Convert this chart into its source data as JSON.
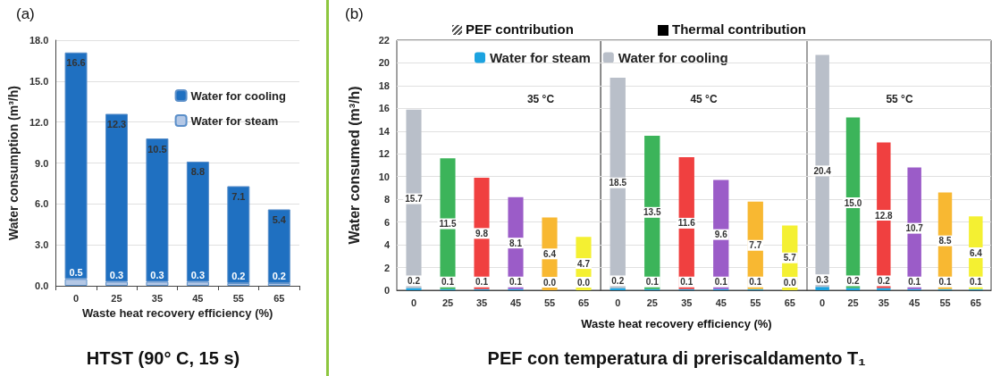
{
  "chart_data": [
    {
      "type": "bar",
      "title": "HTST (90° C, 15 s)",
      "xlabel": "Waste heat recovery efficiency (%)",
      "ylabel": "Water consumption (m³/h)",
      "annotations": [
        "(a)"
      ],
      "categories": [
        "0",
        "25",
        "35",
        "45",
        "55",
        "65"
      ],
      "stacked": true,
      "series": [
        {
          "name": "Water for steam",
          "color": "#b4c8e6",
          "values": [
            0.5,
            0.3,
            0.3,
            0.3,
            0.2,
            0.2
          ],
          "value_labels": [
            "0.5",
            "0.3",
            "0.3",
            "0.3",
            "0.2",
            "0.2"
          ]
        },
        {
          "name": "Water for cooling",
          "color": "#1f70c1",
          "values": [
            16.6,
            12.3,
            10.5,
            8.8,
            7.1,
            5.4
          ],
          "value_labels": [
            "16.6",
            "12.3",
            "10.5",
            "8.8",
            "7.1",
            "5.4"
          ]
        }
      ],
      "ylim": [
        0,
        18
      ],
      "yticks": [
        {
          "value": 0,
          "label": "0.0"
        },
        {
          "value": 3,
          "label": "3.0"
        },
        {
          "value": 6,
          "label": "6.0"
        },
        {
          "value": 9,
          "label": "9.0"
        },
        {
          "value": 12,
          "label": "12.0"
        },
        {
          "value": 15,
          "label": "15.0"
        },
        {
          "value": 18,
          "label": "18.0"
        }
      ],
      "grid": "y",
      "legend": "top right"
    },
    {
      "type": "bar",
      "title": "35 °C",
      "ylabel": "Water consumed (m³/h)",
      "annotations": [
        "(b)",
        "PEF contribution",
        "Thermal contribution",
        "PEF con temperatura di preriscaldamento T₁"
      ],
      "categories": [
        "0",
        "25",
        "35",
        "45",
        "55",
        "65"
      ],
      "stacked": true,
      "series": [
        {
          "name": "Water for steam",
          "color": "#1ca3e0",
          "values": [
            0.2,
            0.1,
            0.1,
            0.1,
            0.0,
            0.0
          ],
          "value_labels": [
            "0.2",
            "0.1",
            "0.1",
            "0.1",
            "0.0",
            "0.0"
          ]
        },
        {
          "name": "Water for cooling",
          "colors": [
            "#b9bfc9",
            "#3cb45a",
            "#f04040",
            "#9b5cc8",
            "#f8b832",
            "#f4f032"
          ],
          "values": [
            15.7,
            11.5,
            9.8,
            8.1,
            6.4,
            4.7
          ],
          "value_labels": [
            "15.7",
            "11.5",
            "9.8",
            "8.1",
            "6.4",
            "4.7"
          ]
        }
      ],
      "ylim": [
        0,
        22
      ],
      "yticks": [
        0,
        2,
        4,
        6,
        8,
        10,
        12,
        14,
        16,
        18,
        20,
        22
      ],
      "grid": "y",
      "legend": "top"
    },
    {
      "type": "bar",
      "title": "45 °C",
      "xlabel": "Waste heat recovery efficiency (%)",
      "categories": [
        "0",
        "25",
        "35",
        "45",
        "55",
        "65"
      ],
      "stacked": true,
      "series": [
        {
          "color": "#1ca3e0",
          "values": [
            0.2,
            0.1,
            0.1,
            0.1,
            0.1,
            0.0
          ],
          "value_labels": [
            "0.2",
            "0.1",
            "0.1",
            "0.1",
            "0.1",
            "0.0"
          ]
        },
        {
          "colors": [
            "#b9bfc9",
            "#3cb45a",
            "#f04040",
            "#9b5cc8",
            "#f8b832",
            "#f4f032"
          ],
          "values": [
            18.5,
            13.5,
            11.6,
            9.6,
            7.7,
            5.7
          ],
          "value_labels": [
            "18.5",
            "13.5",
            "11.6",
            "9.6",
            "7.7",
            "5.7"
          ]
        }
      ],
      "ylim": [
        0,
        22
      ],
      "yticks": [
        0,
        2,
        4,
        6,
        8,
        10,
        12,
        14,
        16,
        18,
        20,
        22
      ],
      "grid": "y",
      "tick_labels": "x"
    },
    {
      "type": "bar",
      "title": "55 °C",
      "categories": [
        "0",
        "25",
        "35",
        "45",
        "55",
        "65"
      ],
      "stacked": true,
      "series": [
        {
          "color": "#1ca3e0",
          "values": [
            0.3,
            0.2,
            0.2,
            0.1,
            0.1,
            0.1
          ],
          "value_labels": [
            "0.3",
            "0.2",
            "0.2",
            "0.1",
            "0.1",
            "0.1"
          ]
        },
        {
          "colors": [
            "#b9bfc9",
            "#3cb45a",
            "#f04040",
            "#9b5cc8",
            "#f8b832",
            "#f4f032"
          ],
          "values": [
            20.4,
            15.0,
            12.8,
            10.7,
            8.5,
            6.4
          ],
          "value_labels": [
            "20.4",
            "15.0",
            "12.8",
            "10.7",
            "8.5",
            "6.4"
          ]
        }
      ],
      "ylim": [
        0,
        22
      ],
      "yticks": [
        0,
        2,
        4,
        6,
        8,
        10,
        12,
        14,
        16,
        18,
        20,
        22
      ],
      "grid": "y",
      "tick_labels": "x"
    }
  ]
}
